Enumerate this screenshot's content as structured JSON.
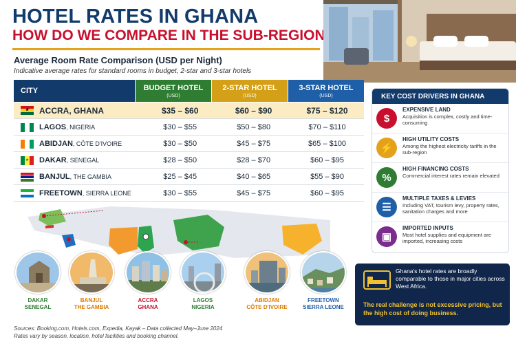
{
  "title": "HOTEL RATES IN GHANA",
  "subtitle": "HOW DO WE COMPARE IN THE SUB-REGION?",
  "section_title": "Average Room Rate Comparison (USD per Night)",
  "section_note": "Indicative average rates for standard rooms in budget, 2-star and 3-star hotels",
  "table": {
    "headers": {
      "city": "CITY",
      "budget": "BUDGET HOTEL",
      "two_star": "2-STAR HOTEL",
      "three_star": "3-STAR HOTEL",
      "unit": "(USD)"
    },
    "rows": [
      {
        "city": "ACCRA",
        "country": ", GHANA",
        "budget": "$35 – $60",
        "two_star": "$60 – $90",
        "three_star": "$75 – $120"
      },
      {
        "city": "LAGOS",
        "country": ", NIGERIA",
        "budget": "$30 – $55",
        "two_star": "$50 – $80",
        "three_star": "$70 – $110"
      },
      {
        "city": "ABIDJAN",
        "country": ", CÔTE D'IVOIRE",
        "budget": "$30 – $50",
        "two_star": "$45 – $75",
        "three_star": "$65 – $100"
      },
      {
        "city": "DAKAR",
        "country": ", SENEGAL",
        "budget": "$28 – $50",
        "two_star": "$28 – $70",
        "three_star": "$60 – $95"
      },
      {
        "city": "BANJUL",
        "country": ", THE GAMBIA",
        "budget": "$25 – $45",
        "two_star": "$40 – $65",
        "three_star": "$55 – $90"
      },
      {
        "city": "FREETOWN",
        "country": ", SIERRA LEONE",
        "budget": "$30 – $55",
        "two_star": "$45 – $75",
        "three_star": "$60 – $95"
      }
    ]
  },
  "photos": [
    {
      "line1": "DAKAR",
      "line2": "SENEGAL"
    },
    {
      "line1": "BANJUL",
      "line2": "THE GAMBIA"
    },
    {
      "line1": "ACCRA",
      "line2": "GHANA"
    },
    {
      "line1": "LAGOS",
      "line2": "NIGERIA"
    },
    {
      "line1": "ABIDJAN",
      "line2": "CÔTE D'IVOIRE"
    },
    {
      "line1": "FREETOWN",
      "line2": "SIERRA LEONE"
    }
  ],
  "sources": "Sources: Booking.com, Hotels.com, Expedia, Kayak – Data collected May–June 2024",
  "sources_note": "Rates vary by season, location, hotel facilities and booking channel.",
  "drivers": {
    "header": "KEY COST DRIVERS IN GHANA",
    "items": [
      {
        "title": "EXPENSIVE LAND",
        "desc": "Acquisition is complex, costly and time-consuming",
        "icon": "land-price-icon",
        "color": "#c8102e"
      },
      {
        "title": "HIGH UTILITY COSTS",
        "desc": "Among the highest electricity tariffs in the sub-region",
        "icon": "lightning-icon",
        "color": "#e3a21a"
      },
      {
        "title": "HIGH FINANCING COSTS",
        "desc": "Commercial interest rates remain elevated",
        "icon": "percent-icon",
        "color": "#2e7d32"
      },
      {
        "title": "MULTIPLE TAXES & LEVIES",
        "desc": "Including VAT, tourism levy, property rates, sanitation charges and more",
        "icon": "tax-document-icon",
        "color": "#1f5fa8"
      },
      {
        "title": "IMPORTED INPUTS",
        "desc": "Most hotel supplies and equipment are imported, increasing costs",
        "icon": "package-icon",
        "color": "#7b2d8e"
      }
    ]
  },
  "callout": {
    "text": "Ghana's hotel rates are broadly comparable to those in major cities across West Africa.",
    "highlight": "The real challenge is not excessive pricing, but the high cost of doing business."
  }
}
